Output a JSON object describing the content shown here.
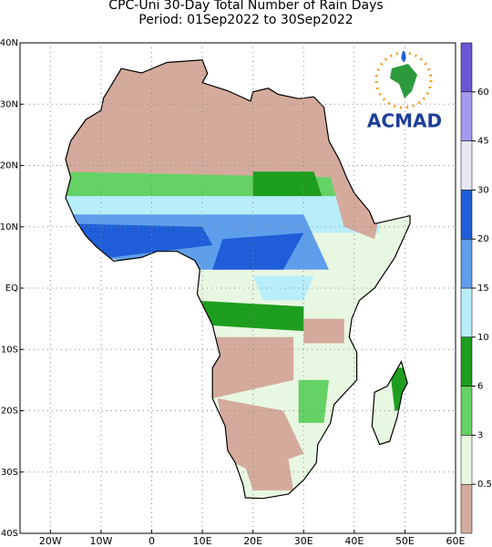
{
  "chart_data": {
    "type": "map",
    "title": "CPC-Uni 30-Day Total Number of Rain Days",
    "subtitle": "Period: 01Sep2022 to 30Sep2022",
    "xlim": [
      -26,
      60
    ],
    "ylim": [
      -40,
      40
    ],
    "xticks": [
      {
        "value": -20,
        "label": "20W"
      },
      {
        "value": -10,
        "label": "10W"
      },
      0,
      {
        "value": 10,
        "label": "10E"
      },
      {
        "value": 20,
        "label": "20E"
      },
      {
        "value": 30,
        "label": "30E"
      },
      {
        "value": 40,
        "label": "40E"
      },
      {
        "value": 50,
        "label": "50E"
      },
      {
        "value": 60,
        "label": "60E"
      }
    ],
    "yticks": [
      {
        "value": -40,
        "label": "40S"
      },
      {
        "value": -30,
        "label": "30S"
      },
      {
        "value": -20,
        "label": "20S"
      },
      {
        "value": -10,
        "label": "10S"
      },
      {
        "value": 0,
        "label": "EQ"
      },
      {
        "value": 10,
        "label": "10N"
      },
      {
        "value": 20,
        "label": "20N"
      },
      {
        "value": 30,
        "label": "30N"
      },
      {
        "value": 40,
        "label": "40N"
      }
    ],
    "grid": true,
    "colorbar_levels": [
      0.5,
      3,
      6,
      10,
      15,
      20,
      30,
      45,
      60
    ],
    "colors": [
      "#d4aa9c",
      "#e8f7e2",
      "#64d264",
      "#1e9e1e",
      "#b8eefa",
      "#5f9eea",
      "#1f5ed8",
      "#e8e8f4",
      "#a49af0",
      "#6a56d4"
    ],
    "logo": "ACMAD"
  }
}
